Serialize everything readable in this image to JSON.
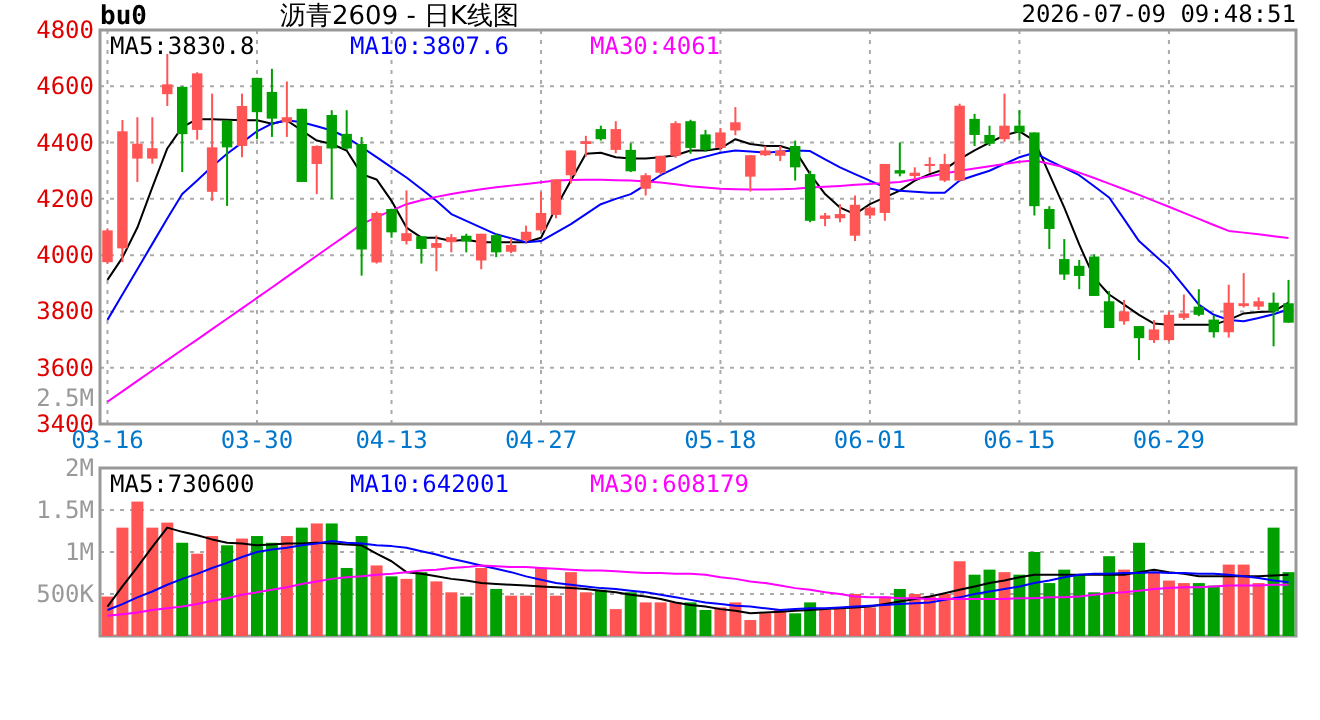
{
  "chart_data": [
    {
      "type": "candlestick",
      "title": "沥青2609 - 日K线图",
      "subtitle": "bu0",
      "annotations": [
        "2026-07-09 09:48:51",
        "2.5M"
      ],
      "categories": [
        "03-16",
        null,
        null,
        null,
        null,
        null,
        null,
        null,
        null,
        null,
        "03-30",
        null,
        null,
        null,
        null,
        null,
        null,
        null,
        null,
        "04-13",
        null,
        null,
        null,
        null,
        null,
        null,
        null,
        null,
        null,
        "04-27",
        null,
        null,
        null,
        null,
        null,
        null,
        null,
        null,
        null,
        null,
        null,
        "05-18",
        null,
        null,
        null,
        null,
        null,
        null,
        null,
        null,
        null,
        "06-01",
        null,
        null,
        null,
        null,
        null,
        null,
        null,
        null,
        null,
        "06-15",
        null,
        null,
        null,
        null,
        null,
        null,
        null,
        null,
        null,
        "06-29",
        null,
        null,
        null,
        null,
        null,
        null,
        null,
        null
      ],
      "ylim": [
        3400,
        4800
      ],
      "yticks": [
        3400,
        3600,
        3800,
        4000,
        4200,
        4400,
        4600,
        4800
      ],
      "grid": true,
      "legend": "top left",
      "ohlc": [
        [
          3975,
          4095,
          3970,
          4088
        ],
        [
          4024,
          4480,
          3975,
          4440
        ],
        [
          4343,
          4490,
          4260,
          4396
        ],
        [
          4343,
          4490,
          4325,
          4380
        ],
        [
          4572,
          4715,
          4530,
          4607
        ],
        [
          4598,
          4600,
          4295,
          4430
        ],
        [
          4445,
          4650,
          4410,
          4646
        ],
        [
          4225,
          4574,
          4193,
          4383
        ],
        [
          4478,
          4480,
          4175,
          4383
        ],
        [
          4388,
          4574,
          4348,
          4530
        ],
        [
          4630,
          4630,
          4412,
          4508
        ],
        [
          4580,
          4662,
          4420,
          4485
        ],
        [
          4472,
          4617,
          4420,
          4490
        ],
        [
          4520,
          4520,
          4260,
          4260
        ],
        [
          4324,
          4390,
          4217,
          4388
        ],
        [
          4498,
          4515,
          4200,
          4379
        ],
        [
          4431,
          4515,
          4375,
          4379
        ],
        [
          4395,
          4420,
          3927,
          4020
        ],
        [
          3974,
          4155,
          3970,
          4150
        ],
        [
          4164,
          4165,
          4062,
          4081
        ],
        [
          4050,
          4230,
          4038,
          4078
        ],
        [
          4067,
          4068,
          3970,
          4022
        ],
        [
          4026,
          4070,
          3943,
          4043
        ],
        [
          4046,
          4075,
          4010,
          4064
        ],
        [
          4069,
          4076,
          4010,
          4048
        ],
        [
          3981,
          4076,
          3950,
          4076
        ],
        [
          4071,
          4076,
          3993,
          4010
        ],
        [
          4012,
          4060,
          4007,
          4036
        ],
        [
          4053,
          4105,
          4045,
          4083
        ],
        [
          4088,
          4224,
          4083,
          4150
        ],
        [
          4143,
          4269,
          4131,
          4269
        ],
        [
          4284,
          4372,
          4255,
          4372
        ],
        [
          4395,
          4424,
          4350,
          4405
        ],
        [
          4448,
          4460,
          4407,
          4412
        ],
        [
          4374,
          4476,
          4362,
          4448
        ],
        [
          4374,
          4398,
          4295,
          4298
        ],
        [
          4236,
          4291,
          4212,
          4284
        ],
        [
          4293,
          4353,
          4286,
          4353
        ],
        [
          4353,
          4476,
          4346,
          4469
        ],
        [
          4476,
          4481,
          4360,
          4381
        ],
        [
          4429,
          4445,
          4367,
          4374
        ],
        [
          4381,
          4452,
          4374,
          4436
        ],
        [
          4443,
          4526,
          4426,
          4472
        ],
        [
          4279,
          4355,
          4226,
          4355
        ],
        [
          4355,
          4388,
          4352,
          4372
        ],
        [
          4353,
          4388,
          4334,
          4372
        ],
        [
          4388,
          4407,
          4265,
          4312
        ],
        [
          4288,
          4300,
          4117,
          4122
        ],
        [
          4129,
          4150,
          4103,
          4141
        ],
        [
          4131,
          4181,
          4117,
          4146
        ],
        [
          4069,
          4212,
          4050,
          4179
        ],
        [
          4141,
          4174,
          4129,
          4169
        ],
        [
          4150,
          4324,
          4122,
          4324
        ],
        [
          4302,
          4400,
          4280,
          4290
        ],
        [
          4281,
          4312,
          4270,
          4293
        ],
        [
          4317,
          4348,
          4293,
          4324
        ],
        [
          4265,
          4360,
          4260,
          4324
        ],
        [
          4265,
          4538,
          4265,
          4531
        ],
        [
          4484,
          4502,
          4388,
          4427
        ],
        [
          4427,
          4460,
          4388,
          4396
        ],
        [
          4412,
          4574,
          4403,
          4460
        ],
        [
          4460,
          4515,
          4408,
          4436
        ],
        [
          4436,
          4436,
          4141,
          4174
        ],
        [
          4164,
          4174,
          4022,
          4093
        ],
        [
          3986,
          4057,
          3912,
          3931
        ],
        [
          3962,
          3983,
          3879,
          3926
        ],
        [
          3995,
          4003,
          3855,
          3855
        ],
        [
          3836,
          3872,
          3741,
          3741
        ],
        [
          3765,
          3841,
          3753,
          3800
        ],
        [
          3748,
          3748,
          3627,
          3705
        ],
        [
          3698,
          3769,
          3688,
          3736
        ],
        [
          3698,
          3800,
          3693,
          3788
        ],
        [
          3777,
          3860,
          3770,
          3793
        ],
        [
          3817,
          3879,
          3783,
          3788
        ],
        [
          3771,
          3786,
          3707,
          3726
        ],
        [
          3726,
          3895,
          3707,
          3831
        ],
        [
          3819,
          3936,
          3814,
          3829
        ],
        [
          3817,
          3850,
          3805,
          3836
        ],
        [
          3831,
          3867,
          3676,
          3800
        ],
        [
          3829,
          3912,
          3760,
          3760
        ]
      ],
      "colors": [
        "#ff5555",
        "#ff5555",
        "#ff5555",
        "#ff5555",
        "#ff5555",
        "#00a000",
        "#ff5555",
        "#ff5555",
        "#00a000",
        "#ff5555",
        "#00a000",
        "#00a000",
        "#ff5555",
        "#00a000",
        "#ff5555",
        "#00a000",
        "#00a000",
        "#00a000",
        "#ff5555",
        "#00a000",
        "#ff5555",
        "#00a000",
        "#ff5555",
        "#ff5555",
        "#00a000",
        "#ff5555",
        "#00a000",
        "#ff5555",
        "#ff5555",
        "#ff5555",
        "#ff5555",
        "#ff5555",
        "#ff5555",
        "#00a000",
        "#ff5555",
        "#00a000",
        "#ff5555",
        "#ff5555",
        "#ff5555",
        "#00a000",
        "#00a000",
        "#ff5555",
        "#ff5555",
        "#ff5555",
        "#ff5555",
        "#ff5555",
        "#00a000",
        "#00a000",
        "#ff5555",
        "#ff5555",
        "#ff5555",
        "#ff5555",
        "#ff5555",
        "#00a000",
        "#ff5555",
        "#ff5555",
        "#ff5555",
        "#ff5555",
        "#00a000",
        "#00a000",
        "#ff5555",
        "#00a000",
        "#00a000",
        "#00a000",
        "#00a000",
        "#00a000",
        "#00a000",
        "#00a000",
        "#ff5555",
        "#00a000",
        "#ff5555",
        "#ff5555",
        "#ff5555",
        "#00a000",
        "#00a000",
        "#ff5555",
        "#ff5555",
        "#ff5555",
        "#00a000",
        "#00a000"
      ],
      "series": [
        {
          "name": "MA5:3830.8",
          "type": "line",
          "color": "#000000",
          "values": [
            3912,
            3991,
            4098,
            4241,
            4379,
            4455,
            4483,
            4483,
            4481,
            4479,
            4479,
            4467,
            4479,
            4443,
            4407,
            4395,
            4372,
            4288,
            4269,
            4193,
            4098,
            4062,
            4062,
            4050,
            4055,
            4046,
            4046,
            4046,
            4046,
            4062,
            4169,
            4265,
            4360,
            4364,
            4348,
            4343,
            4343,
            4348,
            4355,
            4372,
            4372,
            4379,
            4412,
            4395,
            4388,
            4388,
            4372,
            4288,
            4217,
            4169,
            4146,
            4181,
            4205,
            4229,
            4265,
            4288,
            4305,
            4341,
            4372,
            4400,
            4426,
            4440,
            4407,
            4288,
            4169,
            4038,
            3919,
            3860,
            3824,
            3788,
            3757,
            3753,
            3753,
            3753,
            3753,
            3770,
            3793,
            3798,
            3800,
            3831
          ]
        },
        {
          "name": "MA10:3807.6",
          "type": "line",
          "color": "#0000ff",
          "values": [
            3770,
            3860,
            3950,
            4040,
            4130,
            4217,
            4265,
            4315,
            4360,
            4400,
            4440,
            4467,
            4479,
            4472,
            4458,
            4443,
            4419,
            4384,
            4348,
            4312,
            4276,
            4235,
            4193,
            4146,
            4122,
            4098,
            4074,
            4060,
            4046,
            4050,
            4080,
            4110,
            4146,
            4181,
            4200,
            4217,
            4250,
            4284,
            4310,
            4336,
            4350,
            4364,
            4372,
            4368,
            4364,
            4368,
            4372,
            4370,
            4340,
            4312,
            4288,
            4265,
            4241,
            4229,
            4225,
            4222,
            4222,
            4265,
            4283,
            4300,
            4324,
            4348,
            4364,
            4336,
            4310,
            4284,
            4245,
            4205,
            4128,
            4050,
            4002,
            3955,
            3890,
            3824,
            3788,
            3770,
            3765,
            3777,
            3790,
            3808
          ]
        },
        {
          "name": "MA30:4061",
          "type": "line",
          "color": "#ff00ff",
          "values": [
            3479,
            3516,
            3553,
            3590,
            3627,
            3664,
            3700,
            3737,
            3774,
            3811,
            3848,
            3885,
            3923,
            3960,
            3998,
            4035,
            4072,
            4110,
            4135,
            4158,
            4181,
            4195,
            4207,
            4217,
            4226,
            4234,
            4241,
            4247,
            4253,
            4259,
            4265,
            4267,
            4268,
            4268,
            4266,
            4265,
            4262,
            4258,
            4252,
            4245,
            4240,
            4236,
            4234,
            4233,
            4233,
            4234,
            4236,
            4240,
            4243,
            4246,
            4250,
            4253,
            4256,
            4260,
            4270,
            4280,
            4290,
            4300,
            4308,
            4316,
            4324,
            4332,
            4336,
            4325,
            4312,
            4293,
            4274,
            4254,
            4234,
            4214,
            4193,
            4172,
            4150,
            4129,
            4107,
            4086,
            4080,
            4074,
            4067,
            4061
          ]
        }
      ]
    },
    {
      "type": "bar",
      "tick_labels": "y",
      "grid": "y",
      "legend": "top left",
      "categories": [
        null,
        null,
        null,
        null,
        null,
        null,
        null,
        null,
        null,
        null,
        null,
        null,
        null,
        null,
        null,
        null,
        null,
        null,
        null,
        null,
        null,
        null,
        null,
        null,
        null,
        null,
        null,
        null,
        null,
        null,
        null,
        null,
        null,
        null,
        null,
        null,
        null,
        null,
        null,
        null,
        null,
        null,
        null,
        null,
        null,
        null,
        null,
        null,
        null,
        null,
        null,
        null,
        null,
        null,
        null,
        null,
        null,
        null,
        null,
        null,
        null,
        null,
        null,
        null,
        null,
        null,
        null,
        null,
        null,
        null,
        null,
        null,
        null,
        null,
        null,
        null,
        null,
        null,
        null,
        null
      ],
      "ylim": [
        0,
        2000000
      ],
      "yticks": [
        {
          "value": 500000,
          "label": "500K"
        },
        {
          "value": 1000000,
          "label": "1M"
        },
        {
          "value": 1500000,
          "label": "1.5M"
        },
        {
          "value": 2000000,
          "label": "2M"
        }
      ],
      "values": [
        470000,
        1290000,
        1600000,
        1290000,
        1350000,
        1110000,
        980000,
        1190000,
        1080000,
        1160000,
        1190000,
        1110000,
        1190000,
        1290000,
        1340000,
        1340000,
        810000,
        1190000,
        840000,
        710000,
        680000,
        760000,
        650000,
        520000,
        470000,
        810000,
        560000,
        480000,
        480000,
        810000,
        480000,
        760000,
        520000,
        550000,
        320000,
        520000,
        400000,
        400000,
        400000,
        400000,
        310000,
        340000,
        400000,
        190000,
        270000,
        310000,
        270000,
        400000,
        310000,
        340000,
        500000,
        340000,
        470000,
        560000,
        500000,
        470000,
        500000,
        890000,
        730000,
        790000,
        760000,
        730000,
        1000000,
        630000,
        790000,
        730000,
        520000,
        950000,
        790000,
        1110000,
        760000,
        660000,
        630000,
        630000,
        600000,
        850000,
        850000,
        630000,
        1290000,
        760000
      ],
      "colors": [
        "#ff5555",
        "#ff5555",
        "#ff5555",
        "#ff5555",
        "#ff5555",
        "#00a000",
        "#ff5555",
        "#ff5555",
        "#00a000",
        "#ff5555",
        "#00a000",
        "#00a000",
        "#ff5555",
        "#00a000",
        "#ff5555",
        "#00a000",
        "#00a000",
        "#00a000",
        "#ff5555",
        "#00a000",
        "#ff5555",
        "#00a000",
        "#ff5555",
        "#ff5555",
        "#00a000",
        "#ff5555",
        "#00a000",
        "#ff5555",
        "#ff5555",
        "#ff5555",
        "#ff5555",
        "#ff5555",
        "#ff5555",
        "#00a000",
        "#ff5555",
        "#00a000",
        "#ff5555",
        "#ff5555",
        "#ff5555",
        "#00a000",
        "#00a000",
        "#ff5555",
        "#ff5555",
        "#ff5555",
        "#ff5555",
        "#ff5555",
        "#00a000",
        "#00a000",
        "#ff5555",
        "#ff5555",
        "#ff5555",
        "#ff5555",
        "#ff5555",
        "#00a000",
        "#ff5555",
        "#ff5555",
        "#ff5555",
        "#ff5555",
        "#00a000",
        "#00a000",
        "#ff5555",
        "#00a000",
        "#00a000",
        "#00a000",
        "#00a000",
        "#00a000",
        "#00a000",
        "#00a000",
        "#ff5555",
        "#00a000",
        "#ff5555",
        "#ff5555",
        "#ff5555",
        "#00a000",
        "#00a000",
        "#ff5555",
        "#ff5555",
        "#ff5555",
        "#00a000",
        "#00a000"
      ],
      "series": [
        {
          "name": "MA5:730600",
          "type": "line",
          "color": "#000000",
          "values": [
            350000,
            590000,
            820000,
            1060000,
            1290000,
            1240000,
            1200000,
            1150000,
            1110000,
            1100000,
            1080000,
            1090000,
            1100000,
            1100000,
            1110000,
            1100000,
            1090000,
            1080000,
            980000,
            890000,
            760000,
            740000,
            710000,
            680000,
            660000,
            630000,
            620000,
            610000,
            600000,
            590000,
            580000,
            570000,
            560000,
            540000,
            520000,
            490000,
            470000,
            440000,
            400000,
            370000,
            350000,
            320000,
            300000,
            270000,
            280000,
            290000,
            300000,
            310000,
            320000,
            330000,
            340000,
            350000,
            380000,
            410000,
            440000,
            470000,
            510000,
            550000,
            590000,
            630000,
            660000,
            700000,
            730000,
            730000,
            730000,
            730000,
            730000,
            730000,
            730000,
            760000,
            790000,
            760000,
            740000,
            710000,
            710000,
            710000,
            710000,
            710000,
            720000,
            730000
          ]
        },
        {
          "name": "MA10:642001",
          "type": "line",
          "color": "#0000ff",
          "values": [
            310000,
            380000,
            460000,
            530000,
            610000,
            680000,
            740000,
            810000,
            870000,
            940000,
            1000000,
            1030000,
            1050000,
            1080000,
            1100000,
            1130000,
            1110000,
            1100000,
            1080000,
            1070000,
            1050000,
            1010000,
            970000,
            920000,
            880000,
            840000,
            800000,
            760000,
            710000,
            670000,
            630000,
            610000,
            590000,
            570000,
            560000,
            540000,
            520000,
            490000,
            460000,
            430000,
            400000,
            380000,
            360000,
            350000,
            330000,
            310000,
            320000,
            330000,
            330000,
            340000,
            350000,
            360000,
            370000,
            380000,
            390000,
            400000,
            430000,
            460000,
            500000,
            530000,
            560000,
            590000,
            630000,
            660000,
            700000,
            730000,
            740000,
            740000,
            750000,
            750000,
            760000,
            750000,
            750000,
            740000,
            740000,
            730000,
            710000,
            690000,
            660000,
            640000
          ]
        },
        {
          "name": "MA30:608179",
          "type": "line",
          "color": "#ff00ff",
          "values": [
            240000,
            260000,
            280000,
            310000,
            330000,
            350000,
            380000,
            420000,
            450000,
            490000,
            520000,
            550000,
            580000,
            620000,
            650000,
            680000,
            700000,
            710000,
            730000,
            740000,
            760000,
            780000,
            790000,
            810000,
            820000,
            840000,
            830000,
            820000,
            820000,
            810000,
            800000,
            790000,
            780000,
            780000,
            770000,
            760000,
            750000,
            750000,
            740000,
            740000,
            730000,
            700000,
            680000,
            650000,
            630000,
            600000,
            570000,
            550000,
            520000,
            500000,
            470000,
            460000,
            460000,
            450000,
            450000,
            440000,
            440000,
            440000,
            440000,
            440000,
            440000,
            450000,
            450000,
            460000,
            460000,
            470000,
            490000,
            510000,
            520000,
            540000,
            560000,
            570000,
            580000,
            580000,
            590000,
            600000,
            600000,
            600000,
            610000,
            610000
          ]
        }
      ]
    }
  ]
}
